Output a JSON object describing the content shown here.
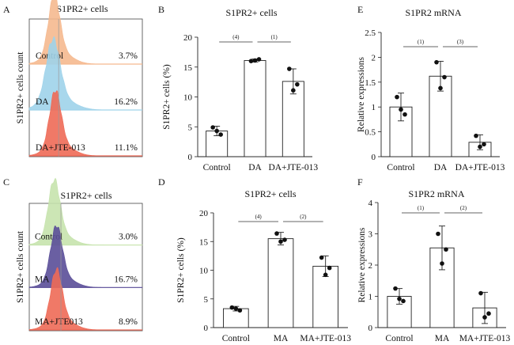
{
  "chart_data": [
    {
      "panel": "A",
      "type": "histogram",
      "title": "S1PR2+ cells",
      "ylabel": "S1PR2+ cells count",
      "tracks": [
        {
          "label": "Control",
          "percent": "3.7%",
          "color": "#f5b98f",
          "peak": 0.22,
          "width": 0.05,
          "peak_height": 0.92
        },
        {
          "label": "DA",
          "percent": "16.2%",
          "color": "#9fd3ea",
          "peak": 0.21,
          "width": 0.06,
          "peak_height": 0.95
        },
        {
          "label": "DA+JTE-013",
          "percent": "11.1%",
          "color": "#ee6a57",
          "peak": 0.23,
          "width": 0.05,
          "peak_height": 0.88
        }
      ],
      "gate_position": 0.26
    },
    {
      "panel": "B",
      "type": "bar",
      "title": "S1PR2+ cells",
      "ylabel": "S1PR2+ cells (%)",
      "ylim": [
        0,
        20
      ],
      "yticks": [
        0,
        5,
        10,
        15,
        20
      ],
      "categories": [
        "Control",
        "DA",
        "DA+JTE-013"
      ],
      "values": [
        4.3,
        16.1,
        12.6
      ],
      "errors": [
        0.8,
        0.25,
        2.1
      ],
      "points": [
        [
          4.9,
          3.7,
          4.3
        ],
        [
          16.0,
          16.3,
          16.1
        ],
        [
          14.7,
          12.1,
          11.1
        ]
      ],
      "significance": [
        {
          "from": 0,
          "to": 1,
          "label": "(4)"
        },
        {
          "from": 1,
          "to": 2,
          "label": "(1)"
        }
      ]
    },
    {
      "panel": "E",
      "type": "bar",
      "title": "S1PR2 mRNA",
      "ylabel": "Relative expressions",
      "ylim": [
        0,
        2.5
      ],
      "yticks": [
        0,
        0.5,
        1,
        1.5,
        2,
        2.5
      ],
      "categories": [
        "Control",
        "DA",
        "DA+JTE-013"
      ],
      "values": [
        1.0,
        1.62,
        0.29
      ],
      "errors": [
        0.28,
        0.3,
        0.15
      ],
      "points": [
        [
          1.2,
          0.85,
          0.95
        ],
        [
          1.9,
          1.6,
          1.38
        ],
        [
          0.42,
          0.25,
          0.2
        ]
      ],
      "significance": [
        {
          "from": 0,
          "to": 1,
          "label": "(1)"
        },
        {
          "from": 1,
          "to": 2,
          "label": "(3)"
        }
      ]
    },
    {
      "panel": "C",
      "type": "histogram",
      "title": "S1PR2+ cells",
      "ylabel": "S1PR2+ cells count",
      "tracks": [
        {
          "label": "Control",
          "percent": "3.0%",
          "color": "#c6e3ad",
          "peak": 0.22,
          "width": 0.05,
          "peak_height": 0.95
        },
        {
          "label": "MA",
          "percent": "16.7%",
          "color": "#5a4e98",
          "peak": 0.24,
          "width": 0.05,
          "peak_height": 0.9
        },
        {
          "label": "MA+JTE013",
          "percent": "8.9%",
          "color": "#ee6a57",
          "peak": 0.24,
          "width": 0.05,
          "peak_height": 0.88
        }
      ],
      "gate_position": 0.28
    },
    {
      "panel": "D",
      "type": "bar",
      "title": "S1PR2+ cells",
      "ylabel": "S1PR2+ cells (%)",
      "ylim": [
        0,
        20
      ],
      "yticks": [
        0,
        5,
        10,
        15,
        20
      ],
      "categories": [
        "Control",
        "MA",
        "MA+JTE-013"
      ],
      "values": [
        3.3,
        15.5,
        10.7
      ],
      "errors": [
        0.4,
        1.1,
        1.8
      ],
      "points": [
        [
          3.5,
          3.0,
          3.3
        ],
        [
          16.4,
          15.3,
          15.0
        ],
        [
          12.2,
          10.4,
          9.2
        ]
      ],
      "significance": [
        {
          "from": 0,
          "to": 1,
          "label": "(4)"
        },
        {
          "from": 1,
          "to": 2,
          "label": "(2)"
        }
      ]
    },
    {
      "panel": "F",
      "type": "bar",
      "title": "S1PR2 mRNA",
      "ylabel": "Relative expressions",
      "ylim": [
        0,
        4
      ],
      "yticks": [
        0,
        1,
        2,
        3,
        4
      ],
      "categories": [
        "Control",
        "MA",
        "MA+JTE-013"
      ],
      "values": [
        1.0,
        2.55,
        0.63
      ],
      "errors": [
        0.25,
        0.7,
        0.5
      ],
      "points": [
        [
          1.25,
          0.85,
          0.92
        ],
        [
          3.0,
          2.5,
          2.05
        ],
        [
          1.1,
          0.45,
          0.33
        ]
      ],
      "significance": [
        {
          "from": 0,
          "to": 1,
          "label": "(1)"
        },
        {
          "from": 1,
          "to": 2,
          "label": "(2)"
        }
      ]
    }
  ]
}
